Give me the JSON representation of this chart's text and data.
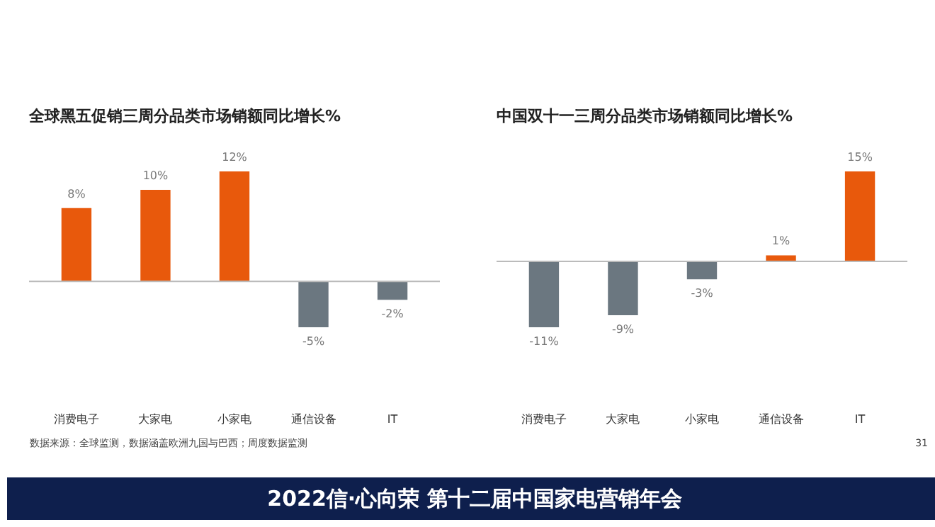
{
  "chart_data": [
    {
      "type": "bar",
      "title": "全球黑五促销三周分品类市场销额同比增长%",
      "categories": [
        "消费电子",
        "大家电",
        "小家电",
        "通信设备",
        "IT"
      ],
      "values": [
        8,
        10,
        12,
        -5,
        -2
      ],
      "value_labels": [
        "8%",
        "10%",
        "12%",
        "-5%",
        "-2%"
      ],
      "colors": [
        "#e8590c",
        "#e8590c",
        "#e8590c",
        "#6b7780",
        "#6b7780"
      ],
      "grid": false,
      "annotations": [
        "数据来源：全球监测，数据涵盖欧洲九国与巴西；周度数据监测",
        "2022信·心向荣  第十二届中国家电营销年会"
      ]
    },
    {
      "type": "bar",
      "title": "中国双十一三周分品类市场销额同比增长%",
      "categories": [
        "消费电子",
        "大家电",
        "小家电",
        "通信设备",
        "IT"
      ],
      "values": [
        -11,
        -9,
        -3,
        1,
        15
      ],
      "value_labels": [
        "-11%",
        "-9%",
        "-3%",
        "1%",
        "15%"
      ],
      "colors": [
        "#6b7780",
        "#6b7780",
        "#6b7780",
        "#e8590c",
        "#e8590c"
      ],
      "grid": false,
      "annotations": [
        "31"
      ]
    }
  ]
}
